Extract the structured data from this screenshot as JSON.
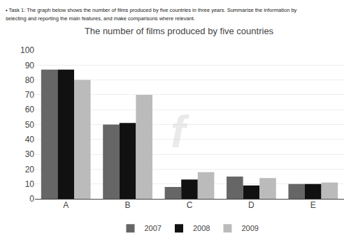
{
  "chart_data": {
    "type": "bar",
    "title": "The number of films produced by five countries",
    "annotations": [
      "• Task 1: The graph below shows the number of films produced by five countries in three years. Summarise the information by",
      "selecting and reporting the main features, and make comparisons where relevant.",
      "f"
    ],
    "categories": [
      "A",
      "B",
      "C",
      "D",
      "E"
    ],
    "series": [
      {
        "name": "2007",
        "color": "#666666",
        "values": [
          87,
          50,
          8,
          15,
          10
        ]
      },
      {
        "name": "2008",
        "color": "#111111",
        "values": [
          87,
          51,
          13,
          9,
          10
        ]
      },
      {
        "name": "2009",
        "color": "#bbbbbb",
        "values": [
          80,
          70,
          18,
          14,
          11
        ]
      }
    ],
    "ylim": [
      0,
      100
    ],
    "yticks": [
      0,
      10,
      20,
      30,
      40,
      50,
      60,
      70,
      80,
      90,
      100
    ],
    "grid": true,
    "legend": "bottom"
  }
}
